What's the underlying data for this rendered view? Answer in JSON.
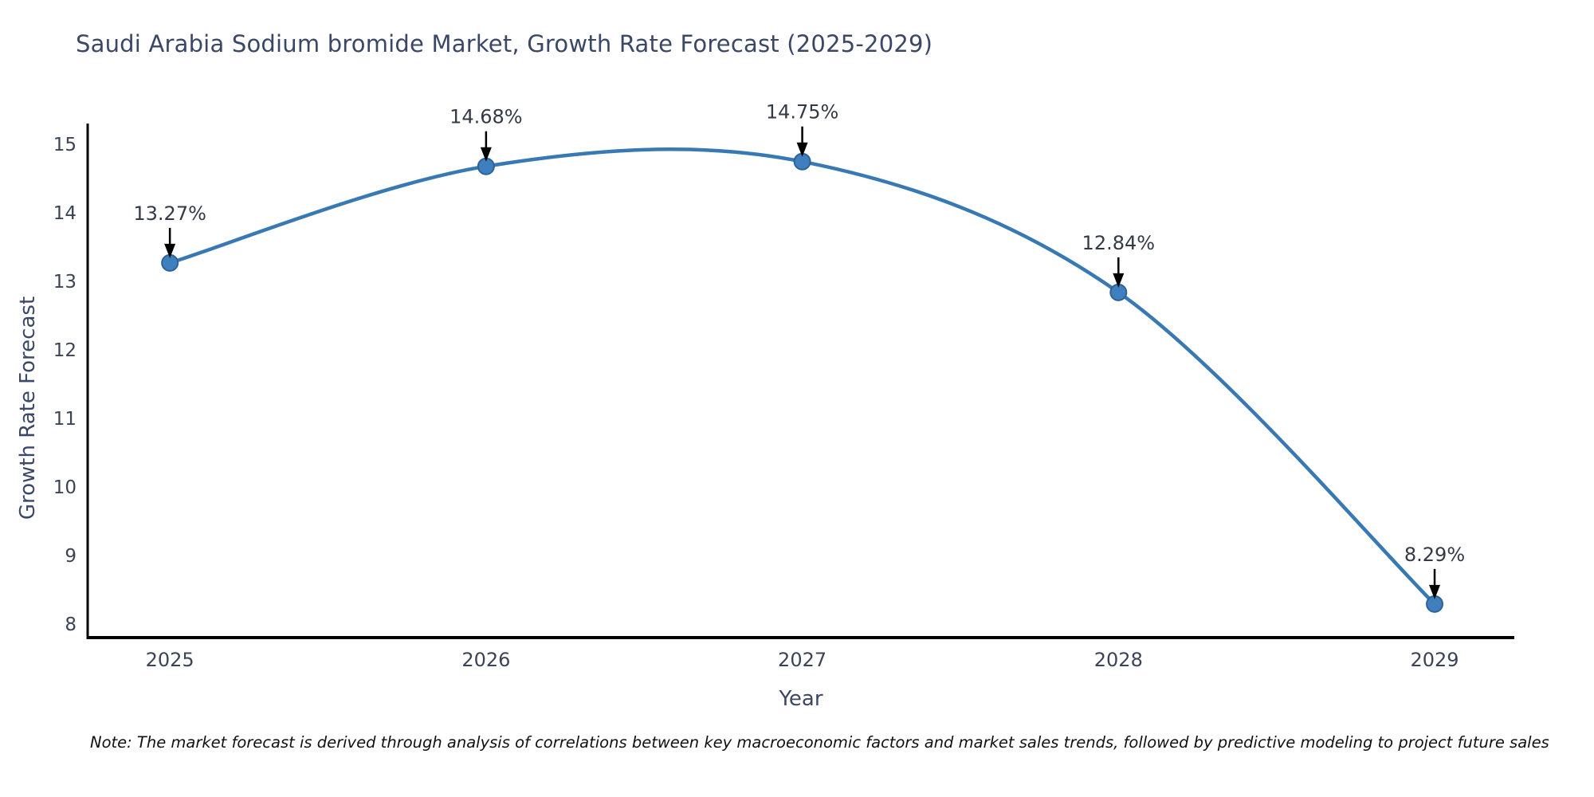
{
  "chart": {
    "title": "Saudi Arabia Sodium bromide Market, Growth Rate Forecast (2025-2029)",
    "xlabel": "Year",
    "ylabel": "Growth Rate Forecast",
    "note": "Note: The market forecast is derived through analysis of correlations between key macroeconomic factors and market sales trends, followed by predictive modeling to project future sales"
  },
  "chart_data": {
    "type": "line",
    "title": "Saudi Arabia Sodium bromide Market, Growth Rate Forecast (2025-2029)",
    "xlabel": "Year",
    "ylabel": "Growth Rate Forecast",
    "x": [
      2025,
      2026,
      2027,
      2028,
      2029
    ],
    "values": [
      13.27,
      14.68,
      14.75,
      12.84,
      8.29
    ],
    "point_labels": [
      "13.27%",
      "14.68%",
      "14.75%",
      "12.84%",
      "8.29%"
    ],
    "x_tick_labels": [
      "2025",
      "2026",
      "2027",
      "2028",
      "2029"
    ],
    "y_ticks": [
      8,
      9,
      10,
      11,
      12,
      13,
      14,
      15
    ],
    "xlim": [
      2024.74,
      2029.252
    ],
    "ylim": [
      7.8,
      15.305
    ],
    "grid": false,
    "legend": null,
    "curve": "smooth",
    "line_color": "#3879b4",
    "marker_color": "#3f7fbd",
    "marker_edge_color": "#2d639a",
    "annotation_text_color": "#333a45",
    "annotation_arrow_color": "#000000",
    "axis_color": "#000000",
    "tick_label_color": "#3b4456",
    "background_color": "#ffffff"
  }
}
